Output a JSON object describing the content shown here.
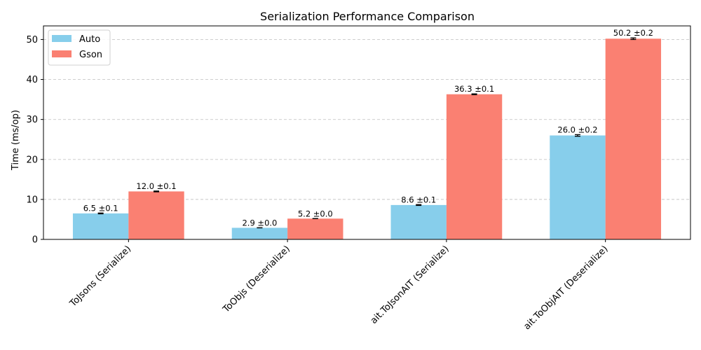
{
  "chart_data": {
    "type": "bar",
    "title": "Serialization Performance Comparison",
    "xlabel": "",
    "ylabel": "Time (ms/op)",
    "ylim": [
      0,
      53.4
    ],
    "yticks": [
      0,
      10,
      20,
      30,
      40,
      50
    ],
    "grid": "y-dashed",
    "legend_position": "top-left",
    "categories": [
      "ToJsons (Serialize)",
      "ToObjs (Deserialize)",
      "ait.ToJsonAIT (Serialize)",
      "ait.ToObjAIT (Deserialize)"
    ],
    "series": [
      {
        "name": "Auto",
        "color": "#87ceeb",
        "values": [
          6.5,
          2.9,
          8.6,
          26.0
        ],
        "errors": [
          0.1,
          0.0,
          0.1,
          0.2
        ],
        "labels": [
          "6.5 ±0.1",
          "2.9 ±0.0",
          "8.6 ±0.1",
          "26.0 ±0.2"
        ]
      },
      {
        "name": "Gson",
        "color": "#fa8072",
        "values": [
          12.0,
          5.2,
          36.3,
          50.2
        ],
        "errors": [
          0.1,
          0.0,
          0.1,
          0.2
        ],
        "labels": [
          "12.0 ±0.1",
          "5.2 ±0.0",
          "36.3 ±0.1",
          "50.2 ±0.2"
        ]
      }
    ]
  }
}
